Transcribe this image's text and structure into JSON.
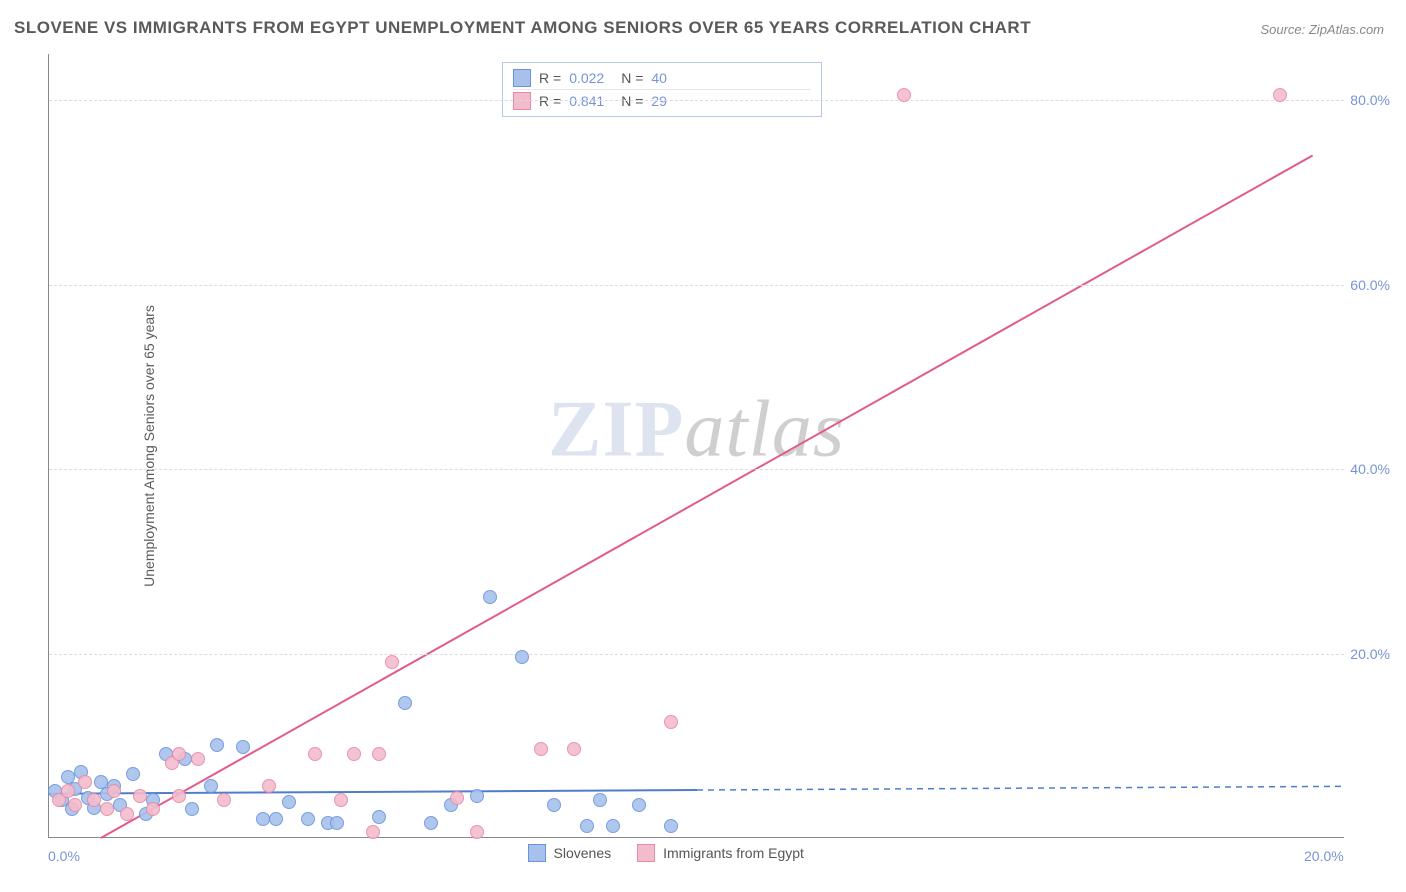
{
  "title": "SLOVENE VS IMMIGRANTS FROM EGYPT UNEMPLOYMENT AMONG SENIORS OVER 65 YEARS CORRELATION CHART",
  "source": "Source: ZipAtlas.com",
  "y_axis_label": "Unemployment Among Seniors over 65 years",
  "watermark": {
    "part1": "ZIP",
    "part2": "atlas"
  },
  "chart": {
    "type": "scatter",
    "xlim": [
      0,
      20
    ],
    "ylim": [
      0,
      85
    ],
    "x_ticks": [
      {
        "value": 0,
        "label": "0.0%"
      },
      {
        "value": 20,
        "label": "20.0%"
      }
    ],
    "y_ticks": [
      {
        "value": 20,
        "label": "20.0%"
      },
      {
        "value": 40,
        "label": "40.0%"
      },
      {
        "value": 60,
        "label": "60.0%"
      },
      {
        "value": 80,
        "label": "80.0%"
      }
    ],
    "grid_color": "#dcdcdc",
    "background_color": "#ffffff",
    "axis_color": "#888888",
    "tick_label_color": "#7794d4",
    "tick_fontsize": 14,
    "label_fontsize": 14,
    "title_fontsize": 17,
    "marker_radius": 7,
    "marker_opacity_fill": 0.45,
    "series": [
      {
        "name": "Slovenes",
        "color_fill": "#a7c1ec",
        "color_stroke": "#6a93dd",
        "r_value": "0.022",
        "n_value": "40",
        "trend": {
          "x1": 0,
          "y1": 4.8,
          "x2": 10,
          "y2": 5.2,
          "solid_until_x": 10,
          "color": "#4e7ecb",
          "width": 2
        },
        "points": [
          {
            "x": 0.1,
            "y": 5.0
          },
          {
            "x": 0.2,
            "y": 4.0
          },
          {
            "x": 0.3,
            "y": 6.5
          },
          {
            "x": 0.35,
            "y": 3.0
          },
          {
            "x": 0.4,
            "y": 5.2
          },
          {
            "x": 0.5,
            "y": 7.0
          },
          {
            "x": 0.6,
            "y": 4.2
          },
          {
            "x": 0.7,
            "y": 3.2
          },
          {
            "x": 0.8,
            "y": 6.0
          },
          {
            "x": 0.9,
            "y": 4.7
          },
          {
            "x": 1.0,
            "y": 5.5
          },
          {
            "x": 1.1,
            "y": 3.5
          },
          {
            "x": 1.3,
            "y": 6.8
          },
          {
            "x": 1.5,
            "y": 2.5
          },
          {
            "x": 1.8,
            "y": 9.0
          },
          {
            "x": 1.6,
            "y": 4.0
          },
          {
            "x": 2.1,
            "y": 8.5
          },
          {
            "x": 2.2,
            "y": 3.0
          },
          {
            "x": 2.6,
            "y": 10.0
          },
          {
            "x": 2.5,
            "y": 5.5
          },
          {
            "x": 3.0,
            "y": 9.8
          },
          {
            "x": 3.3,
            "y": 2.0
          },
          {
            "x": 3.5,
            "y": 2.0
          },
          {
            "x": 3.7,
            "y": 3.8
          },
          {
            "x": 4.0,
            "y": 2.0
          },
          {
            "x": 4.3,
            "y": 1.5
          },
          {
            "x": 4.45,
            "y": 1.5
          },
          {
            "x": 5.1,
            "y": 2.2
          },
          {
            "x": 5.5,
            "y": 14.5
          },
          {
            "x": 5.9,
            "y": 1.5
          },
          {
            "x": 6.2,
            "y": 3.5
          },
          {
            "x": 6.6,
            "y": 4.5
          },
          {
            "x": 6.8,
            "y": 26.0
          },
          {
            "x": 7.3,
            "y": 19.5
          },
          {
            "x": 7.8,
            "y": 3.5
          },
          {
            "x": 8.3,
            "y": 1.2
          },
          {
            "x": 8.5,
            "y": 4.0
          },
          {
            "x": 8.7,
            "y": 1.2
          },
          {
            "x": 9.1,
            "y": 3.5
          },
          {
            "x": 9.6,
            "y": 1.2
          }
        ]
      },
      {
        "name": "Immigrants from Egypt",
        "color_fill": "#f3bccc",
        "color_stroke": "#e68aa8",
        "r_value": "0.841",
        "n_value": "29",
        "trend": {
          "x1": 0.8,
          "y1": 0,
          "x2": 19.5,
          "y2": 74,
          "solid_until_x": 19.5,
          "color": "#e35a8a",
          "width": 2
        },
        "points": [
          {
            "x": 0.15,
            "y": 4.0
          },
          {
            "x": 0.3,
            "y": 5.0
          },
          {
            "x": 0.4,
            "y": 3.5
          },
          {
            "x": 0.55,
            "y": 6.0
          },
          {
            "x": 0.7,
            "y": 4.0
          },
          {
            "x": 0.9,
            "y": 3.0
          },
          {
            "x": 1.0,
            "y": 5.0
          },
          {
            "x": 1.2,
            "y": 2.5
          },
          {
            "x": 1.4,
            "y": 4.5
          },
          {
            "x": 1.6,
            "y": 3.0
          },
          {
            "x": 1.9,
            "y": 8.0
          },
          {
            "x": 2.0,
            "y": 9.0
          },
          {
            "x": 2.0,
            "y": 4.5
          },
          {
            "x": 2.3,
            "y": 8.5
          },
          {
            "x": 2.7,
            "y": 4.0
          },
          {
            "x": 3.4,
            "y": 5.5
          },
          {
            "x": 4.1,
            "y": 9.0
          },
          {
            "x": 4.5,
            "y": 4.0
          },
          {
            "x": 4.7,
            "y": 9.0
          },
          {
            "x": 5.0,
            "y": 0.5
          },
          {
            "x": 5.1,
            "y": 9.0
          },
          {
            "x": 5.3,
            "y": 19.0
          },
          {
            "x": 6.3,
            "y": 4.2
          },
          {
            "x": 6.6,
            "y": 0.5
          },
          {
            "x": 7.6,
            "y": 9.5
          },
          {
            "x": 8.1,
            "y": 9.5
          },
          {
            "x": 9.6,
            "y": 12.5
          },
          {
            "x": 13.2,
            "y": 80.5
          },
          {
            "x": 19.0,
            "y": 80.5
          }
        ]
      }
    ]
  },
  "legend_top_labels": {
    "r": "R  =",
    "n": "N  ="
  },
  "legend_bottom": {
    "items": [
      {
        "label": "Slovenes",
        "fill": "#a7c1ec",
        "stroke": "#6a93dd"
      },
      {
        "label": "Immigrants from Egypt",
        "fill": "#f3bccc",
        "stroke": "#e68aa8"
      }
    ]
  }
}
